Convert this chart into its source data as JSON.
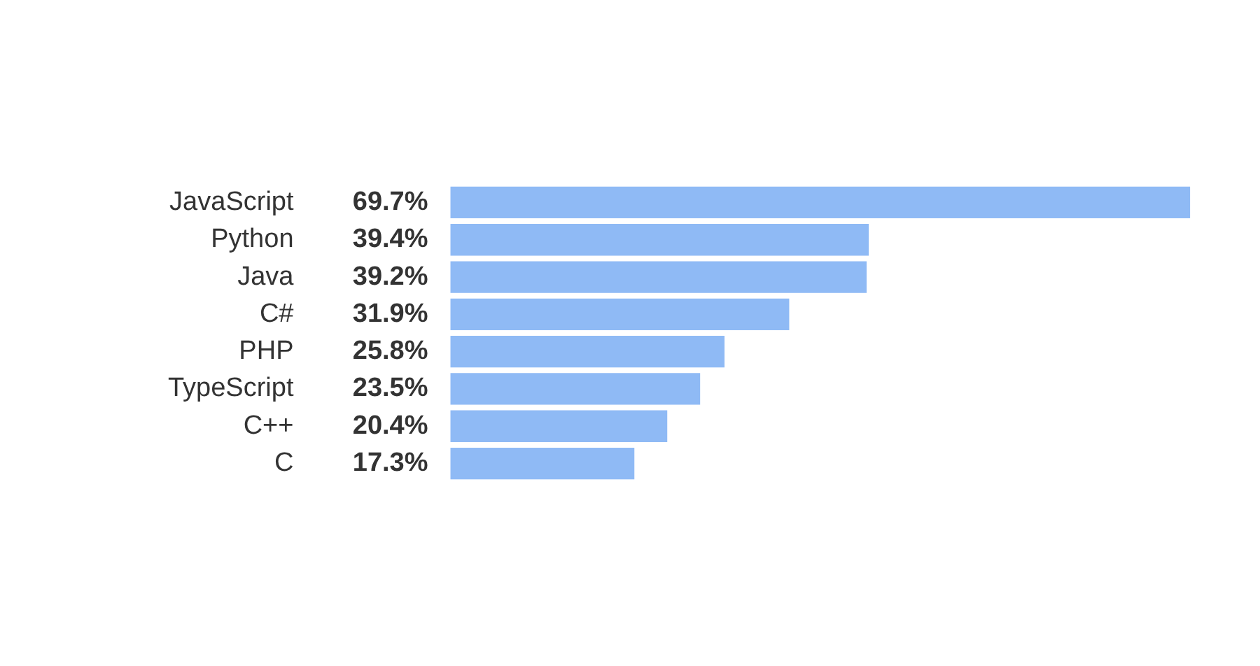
{
  "chart_data": {
    "type": "bar",
    "orientation": "horizontal",
    "categories": [
      "JavaScript",
      "Python",
      "Java",
      "C#",
      "PHP",
      "TypeScript",
      "C++",
      "C"
    ],
    "values": [
      69.7,
      39.4,
      39.2,
      31.9,
      25.8,
      23.5,
      20.4,
      17.3
    ],
    "value_labels": [
      "69.7%",
      "39.4%",
      "39.2%",
      "31.9%",
      "25.8%",
      "23.5%",
      "20.4%",
      "17.3%"
    ],
    "color": "#8fbaf5",
    "grid": false,
    "legend": false
  }
}
